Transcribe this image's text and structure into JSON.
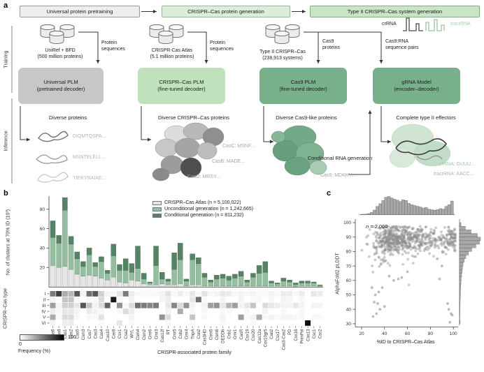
{
  "panel_a": {
    "label": "a",
    "pipeline_headers": [
      {
        "label": "Universal protein pretraining",
        "bg": "#ededee",
        "border": "#9a9a9a"
      },
      {
        "label": "CRISPR–Cas protein generation",
        "bg": "#dceedb",
        "border": "#94b894"
      },
      {
        "label": "Type II CRISPR–Cas system generation",
        "bg": "#c9e4c6",
        "border": "#86ac86"
      }
    ],
    "training_label": "Training",
    "inference_label": "Inference",
    "columns": [
      {
        "dataset": "UniRef + BFD",
        "dataset_sub": "(500 million proteins)",
        "arrow_label": "Protein sequences",
        "model": "Universal PLM",
        "model_sub": "(pretrained decoder)",
        "model_bg": "#c7c7c9",
        "inference_title": "Diverse proteins",
        "outputs": [
          "DIQMTQSPA...",
          "MSNTELELL...",
          "YIEKYNAIAE..."
        ]
      },
      {
        "dataset": "CRISPR-Cas Atlas",
        "dataset_sub": "(5.1 million proteins)",
        "arrow_label": "Protein sequences",
        "model": "CRISPR–Cas PLM",
        "model_sub": "(fine-tuned decoder)",
        "model_bg": "#bfe2bc",
        "inference_title": "Diverse CRISPR–Cas proteins",
        "outputs": [
          "CasC: MSNF...",
          "CasB: MADE...",
          "CasD: MRSY...."
        ]
      },
      {
        "dataset": "Type II CRISPR–Cas",
        "dataset_sub": "(238,913 systems)",
        "arrow_label": "Cas9 proteins",
        "model": "Cas9 PLM",
        "model_sub": "(fine-tuned decoder)",
        "model_bg": "#79b08c",
        "inference_title": "Diverse Cas9-like proteins",
        "outputs": [
          "Cas9: MDKKY...."
        ]
      },
      {
        "arrow_label": "Cas9:RNA sequence pairs",
        "model": "gRNA Model",
        "model_sub": "(encoder–decoder)",
        "model_bg": "#79b08c",
        "inference_title": "Complete type II effectors",
        "outputs": [
          "crRNA: GUUU...",
          "tracrRNA: AACC..."
        ]
      }
    ],
    "rna_glyph": {
      "crRNA": "crRNA",
      "tracrRNA": "tracrRNA",
      "tracr_color": "#a9cdaa"
    },
    "conditional_arrow_label": "Conditional RNA generation"
  },
  "panel_b_label": "b",
  "panel_c_label": "c",
  "chart_data": [
    {
      "id": "family-clusters",
      "type": "bar",
      "stacked": true,
      "xlabel": "CRISPR-associated protein family",
      "ylabel": "No. of clusters at 70% ID (10³)",
      "ylim": [
        0,
        95
      ],
      "yticks": [
        20,
        40,
        60,
        80
      ],
      "legend_position": "top-right",
      "categories": [
        "Cas6",
        "Cas8",
        "Cas1",
        "Cas2",
        "Cas5",
        "Csm3",
        "Cas7",
        "Cas3",
        "Cas4",
        "Cas10",
        "Cas9",
        "Csx1",
        "Cse2",
        "WYL",
        "Csm4",
        "Csm2",
        "Cmr6",
        "Cmr3",
        "Cas12f",
        "RT",
        "Cmr5",
        "Csb2",
        "Cmr4",
        "TnpA",
        "Csn2",
        "Cas3HD",
        "Csm5",
        "Csm6",
        "DEDDh",
        "Csb1",
        "Cmr1",
        "CasR",
        "Csx19",
        "Csx20",
        "Cas12a",
        "Csx10gr5",
        "Can2",
        "Csx17",
        "Cas3-Cas2",
        "PD",
        "Csx16",
        "PrimPol",
        "Cas13",
        "Csc1",
        "Csc2"
      ],
      "series": [
        {
          "name": "CRISPR–Cas Atlas (n = 5,100,022)",
          "color": "#e6e6e6",
          "border": "#969696",
          "values": [
            22,
            20,
            21,
            18,
            13,
            11,
            12,
            11,
            9,
            7,
            10,
            5,
            4,
            7,
            6,
            3,
            2,
            2,
            3,
            2,
            2,
            3,
            1,
            2,
            2,
            1,
            1,
            1,
            1,
            1,
            1,
            1,
            1,
            1,
            1,
            1,
            1,
            1,
            1,
            1,
            0.5,
            1,
            1,
            1,
            0.5
          ]
        },
        {
          "name": "Unconditional generation (n = 1,242,665)",
          "color": "#94be9f",
          "border": "#6d9a79",
          "values": [
            29,
            25,
            58,
            26,
            16,
            10,
            21,
            10,
            17,
            7,
            22,
            12,
            13,
            8,
            13,
            5,
            2,
            20,
            5,
            4,
            16,
            25,
            5,
            26,
            22,
            9,
            4,
            7,
            8,
            6,
            8,
            10,
            4,
            9,
            13,
            14,
            3,
            2,
            5,
            4,
            2,
            3,
            3,
            3,
            1
          ]
        },
        {
          "name": "Conditional generation (n = 811,232)",
          "color": "#558366",
          "border": "#44684f",
          "values": [
            17,
            8,
            13,
            8,
            7,
            5,
            7,
            4,
            5,
            3,
            12,
            6,
            12,
            9,
            23,
            6,
            1,
            20,
            7,
            2,
            17,
            17,
            2,
            6,
            6,
            4,
            2,
            4,
            4,
            4,
            4,
            5,
            2,
            4,
            8,
            11,
            2,
            1,
            3,
            2,
            1.5,
            2,
            2,
            1,
            0.5
          ]
        }
      ]
    },
    {
      "id": "type-frequency",
      "type": "heatmap",
      "rows": [
        "I",
        "II",
        "III",
        "IV",
        "V",
        "VI"
      ],
      "row_axis_label": "CRISPR–Cas type",
      "colorbar": {
        "min": "0",
        "max": "100",
        "label": "Frequency (%)"
      },
      "values": [
        [
          55,
          80,
          35,
          30,
          70,
          5,
          60,
          70,
          20,
          5,
          3,
          10,
          55,
          8,
          3,
          3,
          3,
          3,
          5,
          12,
          3,
          8,
          3,
          10,
          3,
          12,
          3,
          5,
          10,
          8,
          3,
          5,
          3,
          5,
          3,
          3,
          5,
          3,
          8,
          8,
          3,
          8,
          0,
          10,
          8
        ],
        [
          5,
          0,
          25,
          25,
          3,
          0,
          3,
          3,
          15,
          0,
          95,
          3,
          0,
          5,
          0,
          0,
          0,
          0,
          5,
          8,
          0,
          0,
          0,
          10,
          60,
          3,
          0,
          0,
          5,
          0,
          0,
          5,
          0,
          3,
          3,
          0,
          3,
          0,
          5,
          3,
          0,
          3,
          0,
          0,
          0
        ],
        [
          40,
          5,
          20,
          20,
          10,
          70,
          25,
          5,
          15,
          65,
          0,
          45,
          3,
          15,
          60,
          55,
          50,
          55,
          0,
          10,
          50,
          15,
          45,
          5,
          0,
          5,
          40,
          45,
          10,
          30,
          40,
          5,
          10,
          25,
          0,
          15,
          10,
          8,
          5,
          5,
          10,
          5,
          0,
          5,
          5
        ],
        [
          8,
          3,
          10,
          10,
          5,
          0,
          8,
          5,
          3,
          0,
          0,
          3,
          15,
          8,
          0,
          0,
          0,
          0,
          0,
          5,
          0,
          35,
          0,
          3,
          0,
          3,
          0,
          0,
          3,
          3,
          0,
          0,
          3,
          0,
          0,
          5,
          0,
          0,
          3,
          0,
          0,
          3,
          0,
          0,
          0
        ],
        [
          35,
          3,
          15,
          15,
          3,
          0,
          3,
          3,
          12,
          0,
          0,
          0,
          0,
          5,
          0,
          0,
          0,
          0,
          45,
          15,
          0,
          0,
          0,
          25,
          0,
          3,
          0,
          0,
          5,
          0,
          0,
          40,
          3,
          5,
          35,
          3,
          5,
          3,
          5,
          5,
          3,
          3,
          0,
          3,
          3
        ],
        [
          5,
          0,
          8,
          8,
          0,
          0,
          0,
          0,
          3,
          0,
          0,
          10,
          0,
          3,
          0,
          0,
          0,
          0,
          0,
          3,
          0,
          0,
          0,
          3,
          0,
          0,
          0,
          0,
          3,
          0,
          0,
          0,
          0,
          3,
          0,
          0,
          0,
          0,
          0,
          0,
          0,
          0,
          100,
          0,
          0
        ]
      ]
    },
    {
      "id": "plddt-vs-id",
      "type": "scatter",
      "annotation_n": "n",
      "annotation_rest": " = 2,000",
      "n": 2000,
      "xlabel": "%ID to CRISPR–Cas Atlas",
      "ylabel": "AlphaFold2 pLDDT",
      "xlim": [
        20,
        103
      ],
      "ylim": [
        30,
        100
      ],
      "xticks": [
        20,
        40,
        60,
        80,
        100
      ],
      "yticks": [
        30,
        40,
        50,
        60,
        70,
        80,
        90,
        100
      ],
      "point_color": "#8f8f8f",
      "x_marginal_hist": [
        0.02,
        0.03,
        0.06,
        0.12,
        0.25,
        0.45,
        0.6,
        0.78,
        0.95,
        1.0,
        0.92,
        0.85,
        0.8,
        0.72,
        0.82,
        0.78,
        0.62,
        0.55,
        0.5,
        0.46,
        0.42,
        0.36,
        0.4,
        0.3,
        0.27,
        0.24,
        0.28,
        0.33,
        0.3,
        0.45,
        0.55,
        0.75
      ],
      "y_marginal_hist": [
        0.03,
        0.01,
        0.02,
        0.02,
        0.02,
        0.03,
        0.03,
        0.04,
        0.04,
        0.05,
        0.06,
        0.07,
        0.08,
        0.1,
        0.12,
        0.14,
        0.17,
        0.22,
        0.3,
        0.42,
        0.58,
        0.78,
        0.95,
        1.0,
        0.85,
        0.55,
        0.28,
        0.07
      ],
      "outliers": [
        [
          97,
          31
        ],
        [
          98,
          37
        ],
        [
          96,
          40
        ],
        [
          95,
          44
        ],
        [
          99,
          36
        ],
        [
          30,
          35
        ],
        [
          33,
          37
        ],
        [
          34,
          44
        ],
        [
          31,
          45
        ],
        [
          36,
          40
        ],
        [
          32,
          50
        ],
        [
          29,
          55
        ],
        [
          38,
          55
        ],
        [
          48,
          60
        ],
        [
          55,
          62
        ],
        [
          60,
          66
        ],
        [
          52,
          61
        ],
        [
          44,
          63
        ],
        [
          88,
          61
        ],
        [
          90,
          70
        ],
        [
          86,
          75
        ],
        [
          40,
          42
        ],
        [
          35,
          52
        ]
      ]
    }
  ]
}
